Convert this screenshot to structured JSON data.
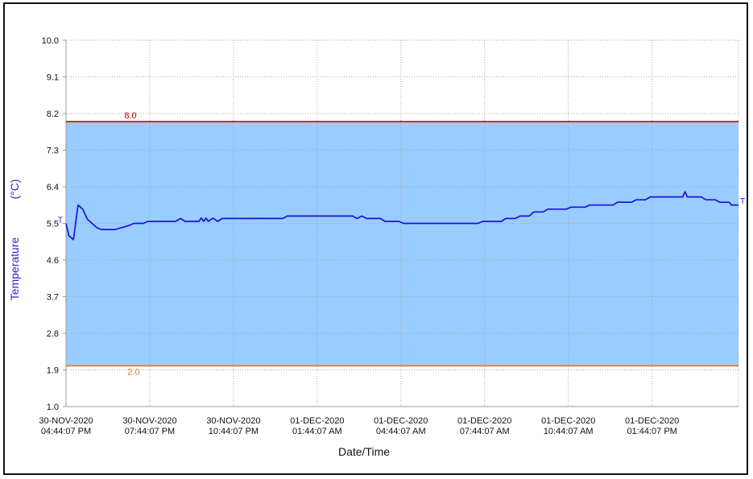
{
  "chart_data": {
    "type": "line",
    "title": "",
    "xlabel": "Date/Time",
    "ylabel": "Temperature",
    "yunit": "(°C)",
    "ylim": [
      1.0,
      10.0
    ],
    "yticks": [
      "1.0",
      "1.9",
      "2.8",
      "3.7",
      "4.6",
      "5.5",
      "6.4",
      "7.3",
      "8.2",
      "9.1",
      "10.0"
    ],
    "xlim": [
      "2020-11-30T16:44:07",
      "2020-12-01T16:50:00"
    ],
    "xticks": [
      {
        "line1": "30-NOV-2020",
        "line2": "04:44:07 PM",
        "at": "2020-11-30T16:44:07"
      },
      {
        "line1": "30-NOV-2020",
        "line2": "07:44:07 PM",
        "at": "2020-11-30T19:44:07"
      },
      {
        "line1": "30-NOV-2020",
        "line2": "10:44:07 PM",
        "at": "2020-11-30T22:44:07"
      },
      {
        "line1": "01-DEC-2020",
        "line2": "01:44:07 AM",
        "at": "2020-12-01T01:44:07"
      },
      {
        "line1": "01-DEC-2020",
        "line2": "04:44:07 AM",
        "at": "2020-12-01T04:44:07"
      },
      {
        "line1": "01-DEC-2020",
        "line2": "07:44:07 AM",
        "at": "2020-12-01T07:44:07"
      },
      {
        "line1": "01-DEC-2020",
        "line2": "10:44:07 AM",
        "at": "2020-12-01T10:44:07"
      },
      {
        "line1": "01-DEC-2020",
        "line2": "01:44:07 PM",
        "at": "2020-12-01T13:44:07"
      }
    ],
    "grid": true,
    "band": {
      "low": 2.0,
      "high": 8.0,
      "color": "#99ccff"
    },
    "limits": [
      {
        "label": "8.0",
        "value": 8.0,
        "color": "#cc0000"
      },
      {
        "label": "2.0",
        "value": 2.0,
        "color": "#e8761a"
      }
    ],
    "start_marker": "T",
    "end_marker": "T",
    "series": [
      {
        "color": "#1a12d8",
        "points": [
          [
            "2020-11-30T16:44:07",
            5.5
          ],
          [
            "2020-11-30T16:50:00",
            5.2
          ],
          [
            "2020-11-30T17:00:00",
            5.1
          ],
          [
            "2020-11-30T17:10:00",
            5.95
          ],
          [
            "2020-11-30T17:20:00",
            5.85
          ],
          [
            "2020-11-30T17:30:00",
            5.6
          ],
          [
            "2020-11-30T17:40:00",
            5.5
          ],
          [
            "2020-11-30T17:50:00",
            5.4
          ],
          [
            "2020-11-30T18:00:00",
            5.35
          ],
          [
            "2020-11-30T18:30:00",
            5.35
          ],
          [
            "2020-11-30T18:45:00",
            5.4
          ],
          [
            "2020-11-30T19:00:00",
            5.45
          ],
          [
            "2020-11-30T19:10:00",
            5.5
          ],
          [
            "2020-11-30T19:30:00",
            5.5
          ],
          [
            "2020-11-30T19:40:00",
            5.55
          ],
          [
            "2020-11-30T20:40:00",
            5.55
          ],
          [
            "2020-11-30T20:50:00",
            5.62
          ],
          [
            "2020-11-30T21:00:00",
            5.55
          ],
          [
            "2020-11-30T21:30:00",
            5.55
          ],
          [
            "2020-11-30T21:35:00",
            5.63
          ],
          [
            "2020-11-30T21:40:00",
            5.55
          ],
          [
            "2020-11-30T21:45:00",
            5.63
          ],
          [
            "2020-11-30T21:50:00",
            5.55
          ],
          [
            "2020-11-30T22:00:00",
            5.63
          ],
          [
            "2020-11-30T22:10:00",
            5.55
          ],
          [
            "2020-11-30T22:20:00",
            5.62
          ],
          [
            "2020-12-01T00:30:00",
            5.62
          ],
          [
            "2020-12-01T00:40:00",
            5.68
          ],
          [
            "2020-12-01T03:00:00",
            5.68
          ],
          [
            "2020-12-01T03:10:00",
            5.62
          ],
          [
            "2020-12-01T03:20:00",
            5.68
          ],
          [
            "2020-12-01T03:30:00",
            5.62
          ],
          [
            "2020-12-01T04:00:00",
            5.62
          ],
          [
            "2020-12-01T04:10:00",
            5.55
          ],
          [
            "2020-12-01T04:40:00",
            5.55
          ],
          [
            "2020-12-01T04:50:00",
            5.5
          ],
          [
            "2020-12-01T07:30:00",
            5.5
          ],
          [
            "2020-12-01T07:40:00",
            5.55
          ],
          [
            "2020-12-01T08:20:00",
            5.55
          ],
          [
            "2020-12-01T08:30:00",
            5.62
          ],
          [
            "2020-12-01T08:50:00",
            5.62
          ],
          [
            "2020-12-01T09:00:00",
            5.68
          ],
          [
            "2020-12-01T09:20:00",
            5.68
          ],
          [
            "2020-12-01T09:30:00",
            5.78
          ],
          [
            "2020-12-01T09:50:00",
            5.78
          ],
          [
            "2020-12-01T10:00:00",
            5.85
          ],
          [
            "2020-12-01T10:40:00",
            5.85
          ],
          [
            "2020-12-01T10:50:00",
            5.9
          ],
          [
            "2020-12-01T11:20:00",
            5.9
          ],
          [
            "2020-12-01T11:30:00",
            5.95
          ],
          [
            "2020-12-01T12:20:00",
            5.95
          ],
          [
            "2020-12-01T12:30:00",
            6.02
          ],
          [
            "2020-12-01T13:00:00",
            6.02
          ],
          [
            "2020-12-01T13:10:00",
            6.08
          ],
          [
            "2020-12-01T13:30:00",
            6.08
          ],
          [
            "2020-12-01T13:40:00",
            6.15
          ],
          [
            "2020-12-01T14:00:00",
            6.15
          ],
          [
            "2020-12-01T14:30:00",
            6.15
          ],
          [
            "2020-12-01T14:50:00",
            6.15
          ],
          [
            "2020-12-01T14:55:00",
            6.28
          ],
          [
            "2020-12-01T15:00:00",
            6.15
          ],
          [
            "2020-12-01T15:30:00",
            6.15
          ],
          [
            "2020-12-01T15:40:00",
            6.08
          ],
          [
            "2020-12-01T16:00:00",
            6.08
          ],
          [
            "2020-12-01T16:10:00",
            6.02
          ],
          [
            "2020-12-01T16:30:00",
            6.02
          ],
          [
            "2020-12-01T16:35:00",
            5.95
          ],
          [
            "2020-12-01T16:50:00",
            5.95
          ]
        ]
      }
    ]
  }
}
